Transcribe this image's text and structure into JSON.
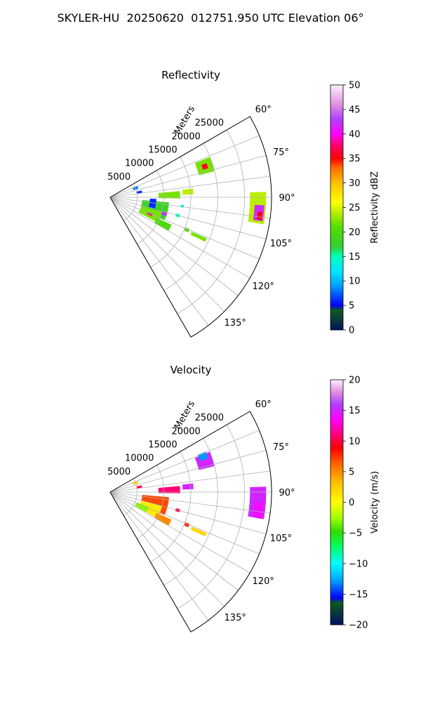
{
  "title": "SKYLER-HU  20250620  012751.950 UTC Elevation 06°",
  "chart_data": [
    {
      "type": "polar-sector",
      "title": "Reflectivity",
      "radial_label": "Meters",
      "radial_ticks": [
        5000,
        10000,
        15000,
        20000,
        25000
      ],
      "rmax": 30000,
      "angle_ticks": [
        "60°",
        "75°",
        "90°",
        "105°",
        "120°",
        "135°"
      ],
      "angle_range": [
        60,
        150
      ],
      "grid": true,
      "colorbar": {
        "label": "Reflectivity dBZ",
        "range": [
          0,
          50
        ],
        "ticks": [
          "0",
          "5",
          "10",
          "15",
          "20",
          "25",
          "30",
          "35",
          "40",
          "45",
          "50"
        ]
      },
      "echoes": [
        {
          "az": 72,
          "r": 18500,
          "dr": 1500,
          "daz": 4,
          "value": 22
        },
        {
          "az": 72,
          "r": 18500,
          "dr": 500,
          "daz": 1.5,
          "value": 36
        },
        {
          "az": 94,
          "r": 27500,
          "dr": 1500,
          "daz": 6,
          "value": 24
        },
        {
          "az": 96,
          "r": 27800,
          "dr": 900,
          "daz": 3,
          "value": 42
        },
        {
          "az": 97,
          "r": 28000,
          "dr": 400,
          "daz": 1.5,
          "value": 35
        },
        {
          "az": 88,
          "r": 11000,
          "dr": 2000,
          "daz": 3,
          "value": 22
        },
        {
          "az": 86,
          "r": 14500,
          "dr": 1000,
          "daz": 2,
          "value": 24
        },
        {
          "az": 104,
          "r": 8500,
          "dr": 2500,
          "daz": 9,
          "value": 18
        },
        {
          "az": 112,
          "r": 8000,
          "dr": 2000,
          "daz": 6,
          "value": 22
        },
        {
          "az": 113,
          "r": 8000,
          "dr": 500,
          "daz": 1.5,
          "value": 38
        },
        {
          "az": 107,
          "r": 10500,
          "dr": 500,
          "daz": 1.5,
          "value": 42
        },
        {
          "az": 117,
          "r": 11000,
          "dr": 1500,
          "daz": 3,
          "value": 20
        },
        {
          "az": 98,
          "r": 8000,
          "dr": 600,
          "daz": 6,
          "value": 6
        },
        {
          "az": 70,
          "r": 5000,
          "dr": 500,
          "daz": 3,
          "value": 8
        },
        {
          "az": 80,
          "r": 5500,
          "dr": 500,
          "daz": 2,
          "value": 6
        },
        {
          "az": 105,
          "r": 13000,
          "dr": 400,
          "daz": 1.2,
          "value": 15
        },
        {
          "az": 113,
          "r": 15500,
          "dr": 400,
          "daz": 1.2,
          "value": 20
        },
        {
          "az": 114,
          "r": 18000,
          "dr": 1500,
          "daz": 1,
          "value": 22
        },
        {
          "az": 97,
          "r": 13500,
          "dr": 300,
          "daz": 1,
          "value": 14
        }
      ]
    },
    {
      "type": "polar-sector",
      "title": "Velocity",
      "radial_label": "Meters",
      "radial_ticks": [
        5000,
        10000,
        15000,
        20000,
        25000
      ],
      "rmax": 30000,
      "angle_ticks": [
        "60°",
        "75°",
        "90°",
        "105°",
        "120°",
        "135°"
      ],
      "angle_range": [
        60,
        150
      ],
      "grid": true,
      "colorbar": {
        "label": "Velocity (m/s)",
        "range": [
          -20,
          20
        ],
        "ticks": [
          "−20",
          "−15",
          "−10",
          "−5",
          "0",
          "5",
          "10",
          "15",
          "20"
        ]
      },
      "echoes": [
        {
          "az": 72,
          "r": 18500,
          "dr": 1500,
          "daz": 4,
          "value": 15
        },
        {
          "az": 69,
          "r": 18500,
          "dr": 800,
          "daz": 2,
          "value": -13
        },
        {
          "az": 94,
          "r": 27500,
          "dr": 1500,
          "daz": 6,
          "value": 15
        },
        {
          "az": 97,
          "r": 27800,
          "dr": 800,
          "daz": 3,
          "value": 14
        },
        {
          "az": 88,
          "r": 11000,
          "dr": 2000,
          "daz": 3,
          "value": 11
        },
        {
          "az": 86,
          "r": 14500,
          "dr": 1000,
          "daz": 2,
          "value": 15
        },
        {
          "az": 104,
          "r": 8500,
          "dr": 2500,
          "daz": 9,
          "value": 7
        },
        {
          "az": 112,
          "r": 8000,
          "dr": 2000,
          "daz": 7,
          "value": 1
        },
        {
          "az": 115,
          "r": 6500,
          "dr": 1200,
          "daz": 4,
          "value": -3
        },
        {
          "az": 117,
          "r": 11000,
          "dr": 1500,
          "daz": 3,
          "value": 5
        },
        {
          "az": 70,
          "r": 5000,
          "dr": 500,
          "daz": 3,
          "value": 2
        },
        {
          "az": 80,
          "r": 5500,
          "dr": 500,
          "daz": 2,
          "value": 10
        },
        {
          "az": 105,
          "r": 13000,
          "dr": 400,
          "daz": 1.2,
          "value": 10
        },
        {
          "az": 113,
          "r": 15500,
          "dr": 400,
          "daz": 1.2,
          "value": 8
        },
        {
          "az": 114,
          "r": 18000,
          "dr": 1500,
          "daz": 1,
          "value": 2
        }
      ]
    }
  ]
}
